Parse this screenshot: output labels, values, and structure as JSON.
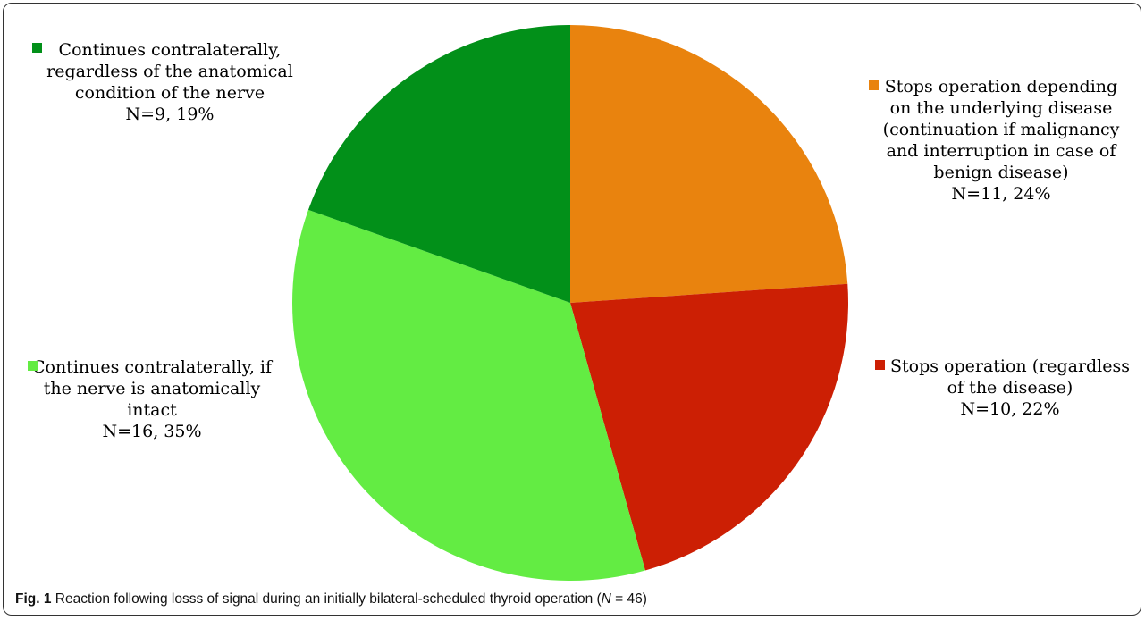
{
  "chart_data": {
    "type": "pie",
    "total_label": "N=46",
    "slices": [
      {
        "key": "stops-depending",
        "lines": [
          "Stops operation depending",
          "on the underlying disease",
          "(continuation if malignancy",
          "and interruption in case of",
          "benign disease)",
          "N=11, 24%"
        ],
        "n": 11,
        "percent": 24,
        "color": "#e9830e"
      },
      {
        "key": "stops-regardless",
        "lines": [
          "Stops operation (regardless",
          "of the disease)",
          "N=10, 22%"
        ],
        "n": 10,
        "percent": 22,
        "color": "#cc1f04"
      },
      {
        "key": "continues-if-intact",
        "lines": [
          "Continues contralaterally, if",
          "the nerve is anatomically",
          "intact",
          "N=16, 35%"
        ],
        "n": 16,
        "percent": 35,
        "color": "#63ec43"
      },
      {
        "key": "continues-regardless",
        "lines": [
          "Continues contralaterally,",
          "regardless of the anatomical",
          "condition of the nerve",
          "N=9, 19%"
        ],
        "n": 9,
        "percent": 19,
        "color": "#029019"
      }
    ]
  },
  "caption": {
    "fig": "Fig. 1",
    "text": " Reaction following losss of signal during an initially bilateral-scheduled thyroid operation (",
    "n_italic": "N",
    "n_value": " = 46)"
  }
}
